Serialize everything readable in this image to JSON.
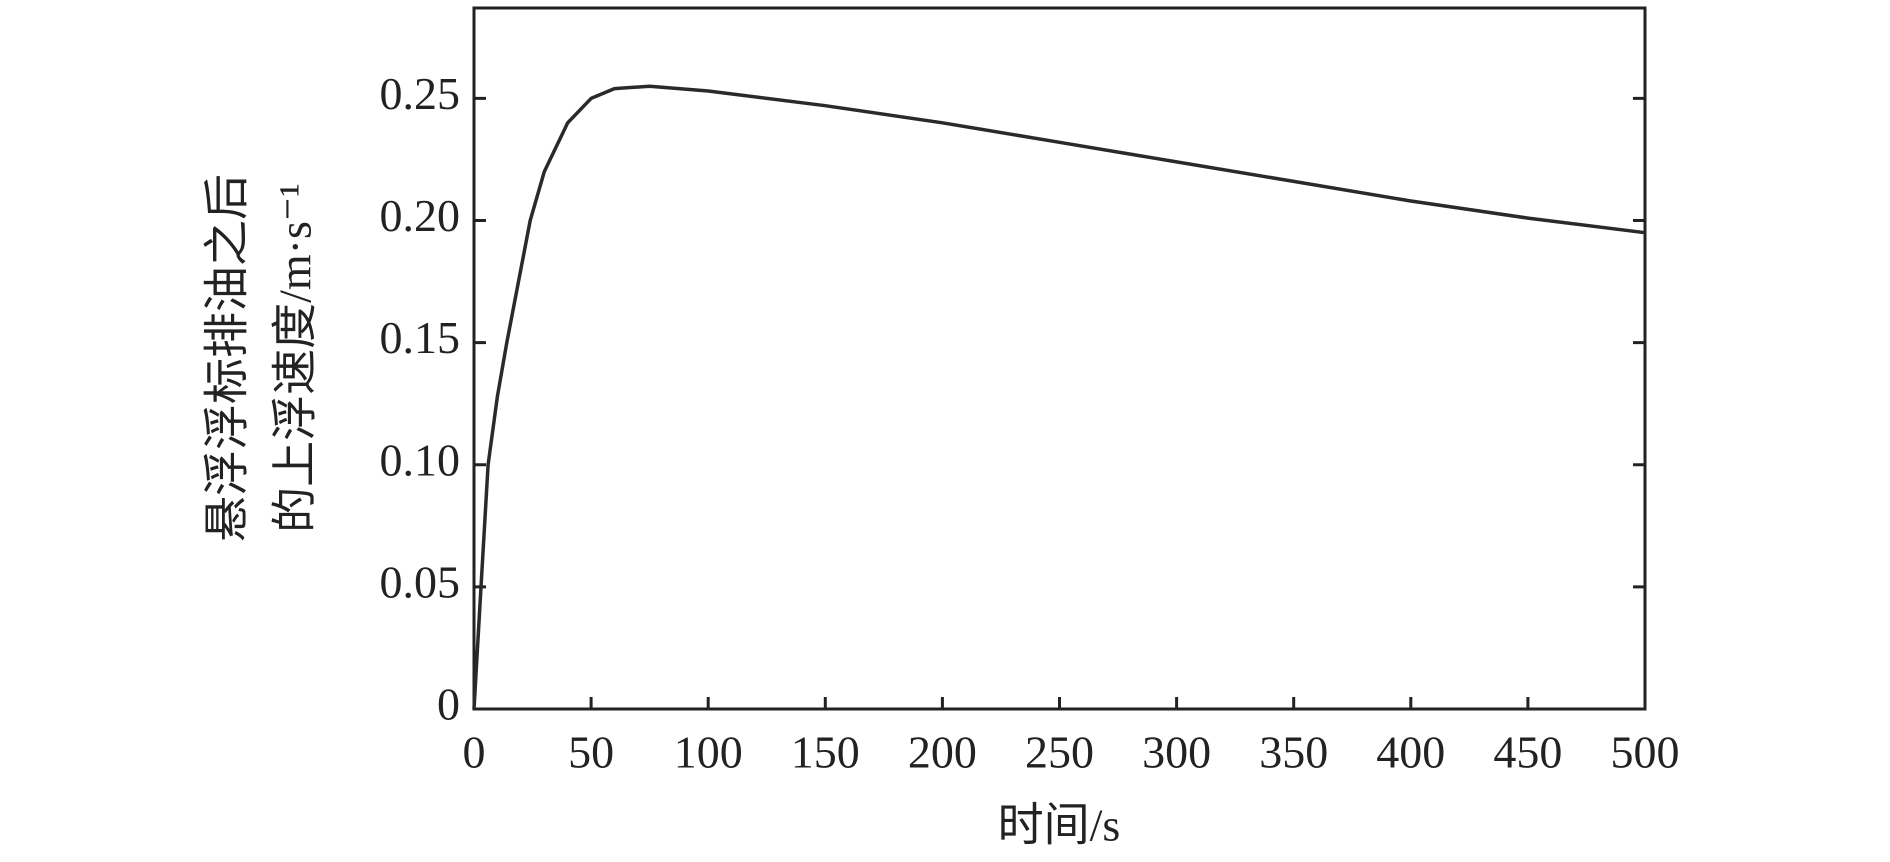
{
  "chart_data": {
    "type": "line",
    "x_label": "时间/s",
    "y_label": [
      "悬浮浮标排油之后",
      "的上浮速度/m·s⁻¹"
    ],
    "series": [
      {
        "color": "#2a2a2a",
        "x": [
          0,
          3,
          6,
          10,
          14,
          19,
          24,
          30,
          40,
          50,
          60,
          75,
          100,
          150,
          200,
          250,
          300,
          350,
          400,
          450,
          500
        ],
        "values": [
          0,
          0.05,
          0.1,
          0.128,
          0.15,
          0.175,
          0.2,
          0.22,
          0.24,
          0.25,
          0.254,
          0.255,
          0.253,
          0.247,
          0.24,
          0.232,
          0.224,
          0.216,
          0.208,
          0.201,
          0.195
        ]
      }
    ],
    "xlim": [
      0,
      500
    ],
    "xticks": [
      0,
      50,
      100,
      150,
      200,
      250,
      300,
      350,
      400,
      450,
      500
    ],
    "ylim": [
      0,
      0.287
    ],
    "yticks": [
      0,
      0.05,
      {
        "value": 0.1,
        "label": "0.10"
      },
      0.15,
      {
        "value": 0.2,
        "label": "0.20"
      },
      0.25
    ]
  }
}
